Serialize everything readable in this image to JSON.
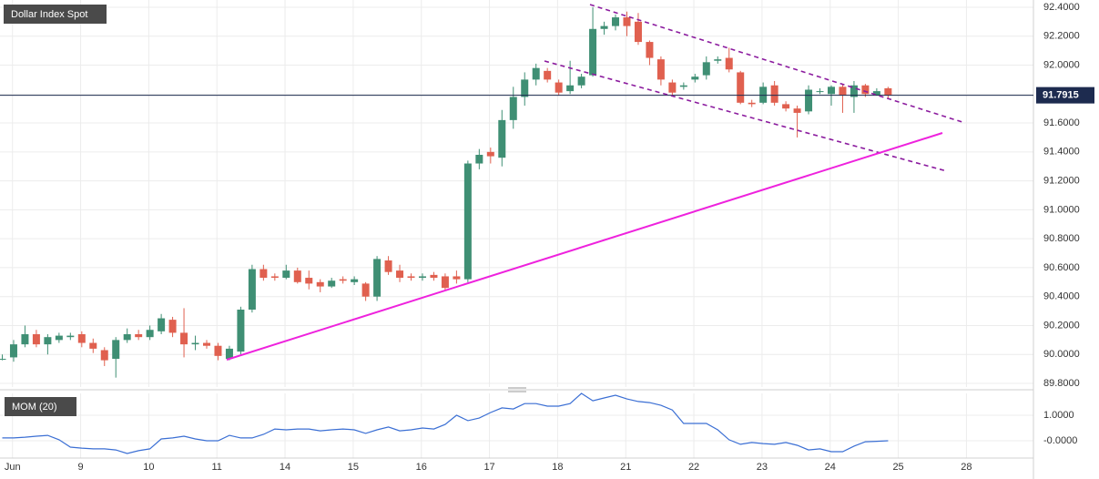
{
  "chart_data": [
    {
      "type": "candlestick",
      "title": "Dollar Index Spot",
      "up_color": "#3f8f74",
      "down_color": "#e0604f",
      "open": [
        89.97,
        89.98,
        90.07,
        90.14,
        90.07,
        90.1,
        90.12,
        90.14,
        90.08,
        90.03,
        89.97,
        90.1,
        90.14,
        90.12,
        90.16,
        90.24,
        90.15,
        90.07,
        90.08,
        90.06,
        89.97,
        90.02,
        90.31,
        90.59,
        90.54,
        90.53,
        90.58,
        90.53,
        90.5,
        90.47,
        90.52,
        90.5,
        90.49,
        90.4,
        90.65,
        90.58,
        90.54,
        90.53,
        90.55,
        90.54,
        90.54,
        90.52,
        91.32,
        91.4,
        91.36,
        91.62,
        91.78,
        91.9,
        91.96,
        91.88,
        91.82,
        91.86,
        91.93,
        92.25,
        92.27,
        92.33,
        92.3,
        92.16,
        92.04,
        91.88,
        91.85,
        91.9,
        91.93,
        92.03,
        92.05,
        91.95,
        91.74,
        91.74,
        91.86,
        91.73,
        91.7,
        91.68,
        91.82,
        91.8,
        91.85,
        91.78,
        91.86,
        91.79,
        91.84
      ],
      "high": [
        90.0,
        90.1,
        90.2,
        90.17,
        90.14,
        90.15,
        90.15,
        90.16,
        90.11,
        90.05,
        90.12,
        90.18,
        90.17,
        90.2,
        90.28,
        90.26,
        90.32,
        90.13,
        90.1,
        90.08,
        90.06,
        90.33,
        90.62,
        90.62,
        90.56,
        90.62,
        90.6,
        90.58,
        90.52,
        90.53,
        90.54,
        90.54,
        90.5,
        90.68,
        90.68,
        90.62,
        90.56,
        90.56,
        90.57,
        90.56,
        90.58,
        91.34,
        91.42,
        91.43,
        91.69,
        91.85,
        91.95,
        92.01,
        91.98,
        91.9,
        92.03,
        91.94,
        92.4,
        92.3,
        92.35,
        92.37,
        92.36,
        92.17,
        92.06,
        91.9,
        91.88,
        91.94,
        92.06,
        92.06,
        92.12,
        91.96,
        91.76,
        91.88,
        91.89,
        91.75,
        91.72,
        91.86,
        91.84,
        91.86,
        91.87,
        91.89,
        91.87,
        91.84,
        91.85
      ],
      "low": [
        89.96,
        89.95,
        90.05,
        90.05,
        90.0,
        90.08,
        90.1,
        90.05,
        90.01,
        89.92,
        89.84,
        90.08,
        90.1,
        90.1,
        90.14,
        90.12,
        89.98,
        90.03,
        90.04,
        89.96,
        89.96,
        90.0,
        90.29,
        90.51,
        90.51,
        90.52,
        90.49,
        90.45,
        90.43,
        90.46,
        90.49,
        90.48,
        90.37,
        90.37,
        90.55,
        90.5,
        90.51,
        90.51,
        90.51,
        90.44,
        90.49,
        90.5,
        91.28,
        91.32,
        91.3,
        91.56,
        91.72,
        91.86,
        91.88,
        91.79,
        91.8,
        91.84,
        91.92,
        92.21,
        92.24,
        92.2,
        92.14,
        92.0,
        91.86,
        91.79,
        91.83,
        91.88,
        91.9,
        92.01,
        91.95,
        91.73,
        91.71,
        91.73,
        91.72,
        91.68,
        91.5,
        91.66,
        91.8,
        91.72,
        91.67,
        91.67,
        91.78,
        91.79,
        91.77
      ],
      "close": [
        89.97,
        90.07,
        90.14,
        90.07,
        90.12,
        90.13,
        90.13,
        90.08,
        90.04,
        89.96,
        90.1,
        90.14,
        90.12,
        90.17,
        90.25,
        90.15,
        90.07,
        90.08,
        90.06,
        89.99,
        90.04,
        90.31,
        90.59,
        90.53,
        90.53,
        90.58,
        90.5,
        90.49,
        90.47,
        90.51,
        90.51,
        90.52,
        90.4,
        90.66,
        90.57,
        90.53,
        90.53,
        90.54,
        90.53,
        90.46,
        90.52,
        91.32,
        91.38,
        91.37,
        91.62,
        91.78,
        91.9,
        91.98,
        91.9,
        91.81,
        91.86,
        91.92,
        92.25,
        92.27,
        92.33,
        92.27,
        92.16,
        92.05,
        91.9,
        91.81,
        91.86,
        91.92,
        92.02,
        92.04,
        91.97,
        91.74,
        91.73,
        91.85,
        91.74,
        91.7,
        91.67,
        91.83,
        91.82,
        91.85,
        91.79,
        91.86,
        91.8,
        91.82,
        91.79
      ],
      "last_price": 91.7915,
      "last_price_color": "#1d2b4f",
      "ylim": [
        89.775,
        92.45
      ],
      "yticks": [
        {
          "value": 89.8,
          "label": "89.8000"
        },
        {
          "value": 90.0,
          "label": "90.0000"
        },
        {
          "value": 90.2,
          "label": "90.2000"
        },
        {
          "value": 90.4,
          "label": "90.4000"
        },
        {
          "value": 90.6,
          "label": "90.6000"
        },
        {
          "value": 90.8,
          "label": "90.8000"
        },
        {
          "value": 91.0,
          "label": "91.0000"
        },
        {
          "value": 91.2,
          "label": "91.2000"
        },
        {
          "value": 91.4,
          "label": "91.4000"
        },
        {
          "value": 91.6,
          "label": "91.6000"
        },
        {
          "value": 91.8,
          "label": "91.8000"
        },
        {
          "value": 92.0,
          "label": "92.0000"
        },
        {
          "value": 92.2,
          "label": "92.2000"
        },
        {
          "value": 92.4,
          "label": "92.4000"
        }
      ],
      "xlim": [
        -0.2,
        90.8
      ],
      "xticks": [
        {
          "value": 0.9,
          "label": "Jun"
        },
        {
          "value": 6.9,
          "label": "9"
        },
        {
          "value": 12.9,
          "label": "10"
        },
        {
          "value": 18.9,
          "label": "11"
        },
        {
          "value": 24.9,
          "label": "14"
        },
        {
          "value": 30.9,
          "label": "15"
        },
        {
          "value": 36.9,
          "label": "16"
        },
        {
          "value": 42.9,
          "label": "17"
        },
        {
          "value": 48.9,
          "label": "18"
        },
        {
          "value": 54.9,
          "label": "21"
        },
        {
          "value": 60.9,
          "label": "22"
        },
        {
          "value": 66.9,
          "label": "23"
        },
        {
          "value": 72.9,
          "label": "24"
        },
        {
          "value": 78.9,
          "label": "25"
        },
        {
          "value": 84.9,
          "label": "28"
        }
      ],
      "grid": true
    },
    {
      "type": "line",
      "title": "MOM (20)",
      "color": "#3b6fd4",
      "values": [
        0.11,
        0.11,
        0.14,
        0.18,
        0.21,
        0.04,
        -0.25,
        -0.29,
        -0.32,
        -0.32,
        -0.36,
        -0.5,
        -0.39,
        -0.32,
        0.07,
        0.11,
        0.18,
        0.07,
        0,
        0,
        0.21,
        0.11,
        0.11,
        0.25,
        0.46,
        0.43,
        0.46,
        0.46,
        0.39,
        0.43,
        0.46,
        0.43,
        0.29,
        0.43,
        0.54,
        0.39,
        0.43,
        0.5,
        0.46,
        0.64,
        1.0,
        0.79,
        0.89,
        1.11,
        1.29,
        1.25,
        1.46,
        1.46,
        1.36,
        1.36,
        1.46,
        1.86,
        1.57,
        1.68,
        1.79,
        1.64,
        1.54,
        1.5,
        1.39,
        1.21,
        0.68,
        0.68,
        0.68,
        0.43,
        0.04,
        -0.14,
        -0.07,
        -0.11,
        -0.14,
        -0.07,
        -0.18,
        -0.36,
        -0.32,
        -0.43,
        -0.43,
        -0.21,
        -0.04,
        -0.02,
        0.0
      ],
      "ylim": [
        -0.68,
        1.86
      ],
      "yticks": [
        {
          "value": 1,
          "label": "1.0000"
        },
        {
          "value": 0,
          "label": "-0.0000"
        }
      ],
      "grid": true
    }
  ]
}
